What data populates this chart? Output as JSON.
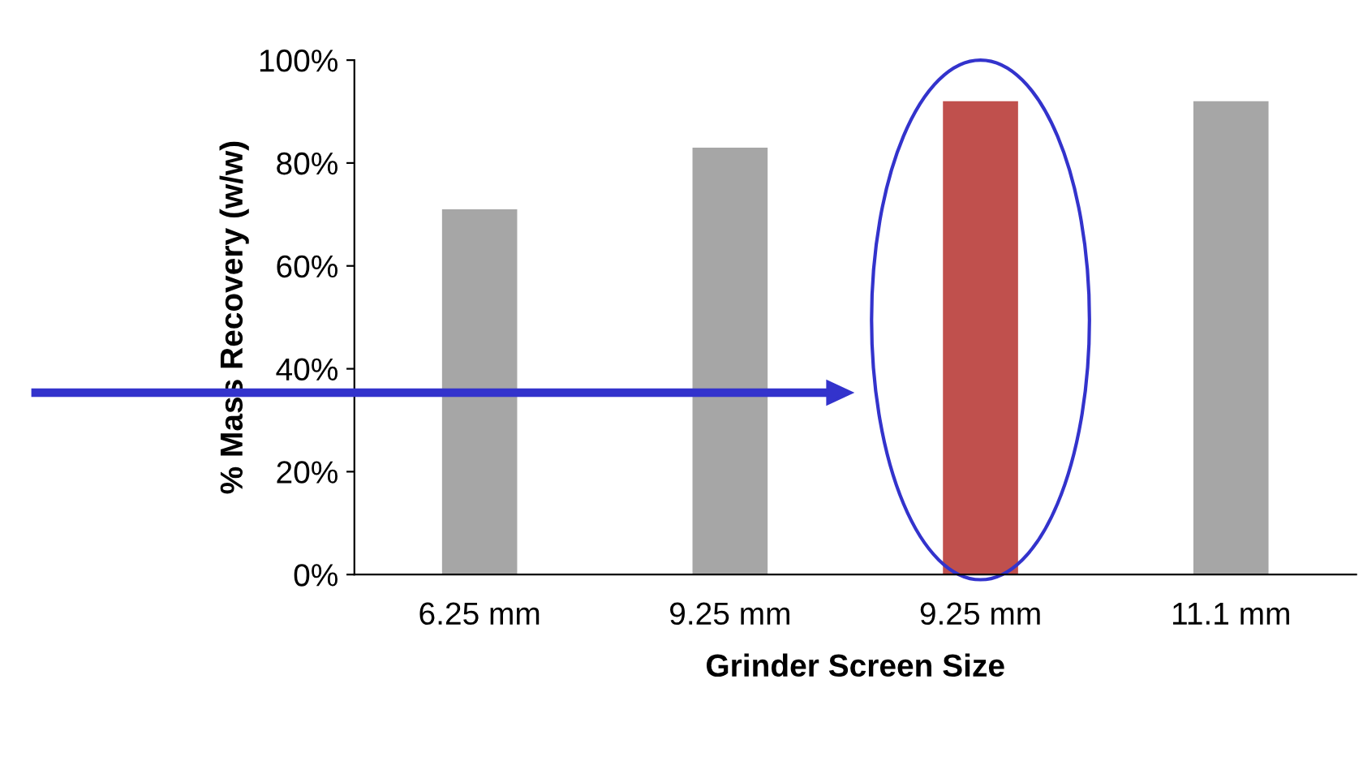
{
  "chart_data": {
    "type": "bar",
    "xlabel": "Grinder Screen Size",
    "ylabel": "% Mass Recovery (w/w)",
    "categories": [
      "6.25 mm",
      "9.25 mm",
      "9.25 mm",
      "11.1 mm"
    ],
    "values": [
      71,
      83,
      92,
      92
    ],
    "colors": [
      "#a6a6a6",
      "#a6a6a6",
      "#c0504d",
      "#a6a6a6"
    ],
    "ylim": [
      0,
      100
    ],
    "yticks": [
      {
        "value": 0,
        "label": "0%"
      },
      {
        "value": 20,
        "label": "20%"
      },
      {
        "value": 40,
        "label": "40%"
      },
      {
        "value": 60,
        "label": "60%"
      },
      {
        "value": 80,
        "label": "80%"
      },
      {
        "value": 100,
        "label": "100%"
      }
    ],
    "grid": false,
    "legend": false
  }
}
